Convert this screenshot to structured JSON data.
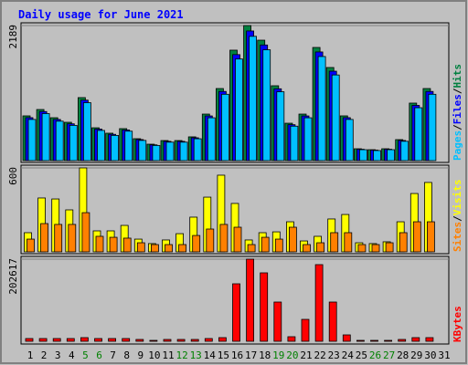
{
  "chart_data": [
    {
      "type": "bar",
      "title": "Daily usage for June 2021",
      "ylim": [
        0,
        2189
      ],
      "yticks": [
        2189
      ],
      "legend_separator": "/",
      "series": [
        {
          "name": "Hits",
          "color": "#008040",
          "values": [
            725,
            828,
            695,
            621,
            1021,
            532,
            444,
            518,
            355,
            266,
            325,
            325,
            385,
            754,
            1168,
            1790,
            2189,
            1952,
            1213,
            606,
            754,
            1834,
            1509,
            725,
            192,
            177,
            192,
            340,
            932,
            1168,
            0
          ]
        },
        {
          "name": "Files",
          "color": "#0000ff",
          "values": [
            696,
            795,
            667,
            596,
            980,
            511,
            426,
            497,
            341,
            255,
            312,
            312,
            370,
            724,
            1121,
            1718,
            2101,
            1874,
            1164,
            582,
            724,
            1761,
            1449,
            696,
            184,
            170,
            184,
            326,
            895,
            1121,
            0
          ]
        },
        {
          "name": "Pages",
          "color": "#00c0ff",
          "values": [
            667,
            762,
            639,
            571,
            939,
            489,
            408,
            477,
            327,
            245,
            299,
            299,
            354,
            694,
            1075,
            1647,
            2014,
            1796,
            1116,
            558,
            694,
            1687,
            1388,
            667,
            177,
            163,
            177,
            313,
            857,
            1075,
            0
          ]
        }
      ]
    },
    {
      "type": "bar",
      "ylim": [
        0,
        600
      ],
      "yticks": [
        600
      ],
      "legend_separator": "/",
      "series": [
        {
          "name": "Visits",
          "color": "#ffff00",
          "values": [
            137,
            385,
            378,
            300,
            600,
            150,
            150,
            189,
            91,
            59,
            85,
            130,
            248,
            391,
            548,
            346,
            85,
            137,
            143,
            215,
            78,
            111,
            235,
            267,
            65,
            59,
            72,
            215,
            417,
            496,
            0
          ]
        },
        {
          "name": "Sites",
          "color": "#ff8000",
          "values": [
            91,
            202,
            196,
            196,
            280,
            111,
            104,
            98,
            65,
            52,
            52,
            52,
            117,
            163,
            196,
            176,
            52,
            104,
            91,
            176,
            52,
            65,
            137,
            137,
            52,
            52,
            65,
            137,
            215,
            215,
            0
          ]
        }
      ]
    },
    {
      "type": "bar",
      "ylim": [
        0,
        202617
      ],
      "yticks": [
        202617
      ],
      "categories": [
        "1",
        "2",
        "3",
        "4",
        "5",
        "6",
        "7",
        "8",
        "9",
        "10",
        "11",
        "12",
        "13",
        "14",
        "15",
        "16",
        "17",
        "18",
        "19",
        "20",
        "21",
        "22",
        "23",
        "24",
        "25",
        "26",
        "27",
        "28",
        "29",
        "30",
        "31"
      ],
      "label_colors": [
        "#000000",
        "#000000",
        "#000000",
        "#000000",
        "#008000",
        "#008000",
        "#000000",
        "#000000",
        "#000000",
        "#000000",
        "#000000",
        "#008000",
        "#008000",
        "#000000",
        "#000000",
        "#000000",
        "#000000",
        "#000000",
        "#008000",
        "#008000",
        "#000000",
        "#000000",
        "#000000",
        "#000000",
        "#000000",
        "#008000",
        "#008000",
        "#000000",
        "#000000",
        "#000000",
        "#000000"
      ],
      "series": [
        {
          "name": "KBytes",
          "color": "#ff0000",
          "values": [
            6754,
            6754,
            6754,
            6754,
            9005,
            6754,
            6754,
            6754,
            4503,
            2251,
            4503,
            4503,
            4503,
            6754,
            9005,
            141832,
            202617,
            168848,
            96806,
            11257,
            54032,
            189109,
            96806,
            15759,
            2251,
            2251,
            2251,
            4503,
            9005,
            9005,
            0
          ]
        }
      ]
    }
  ]
}
